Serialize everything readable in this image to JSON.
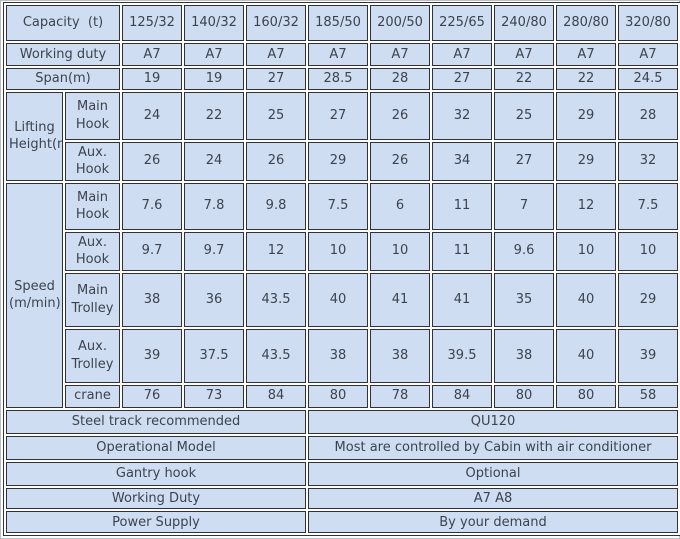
{
  "table": {
    "capacity_header": "Capacity  (t)",
    "models": [
      "125/32",
      "140/32",
      "160/32",
      "185/50",
      "200/50",
      "225/65",
      "240/80",
      "280/80",
      "320/80"
    ],
    "working_duty": {
      "label": "Working duty",
      "values": [
        "A7",
        "A7",
        "A7",
        "A7",
        "A7",
        "A7",
        "A7",
        "A7",
        "A7"
      ]
    },
    "span": {
      "label": "Span(m)",
      "values": [
        19,
        19,
        27,
        28.5,
        28,
        27,
        22,
        22,
        24.5
      ]
    },
    "lifting": {
      "label": "Lifting\nHeight(m)",
      "rows": [
        {
          "label": "Main Hook",
          "values": [
            24,
            22,
            25,
            27,
            26,
            32,
            25,
            29,
            28
          ]
        },
        {
          "label": "Aux. Hook",
          "values": [
            26,
            24,
            26,
            29,
            26,
            34,
            27,
            29,
            32
          ]
        }
      ]
    },
    "speed": {
      "label": "Speed\n(m/min)",
      "rows": [
        {
          "label": "Main Hook",
          "values": [
            7.6,
            7.8,
            9.8,
            7.5,
            6,
            11,
            7,
            12,
            7.5
          ]
        },
        {
          "label": "Aux. Hook",
          "values": [
            9.7,
            9.7,
            12,
            10,
            10,
            11,
            9.6,
            10,
            10
          ]
        },
        {
          "label": "Main Trolley",
          "values": [
            38,
            36,
            43.5,
            40,
            41,
            41,
            35,
            40,
            29
          ]
        },
        {
          "label": "Aux. Trolley",
          "values": [
            39,
            37.5,
            43.5,
            38,
            38,
            39.5,
            38,
            40,
            39
          ]
        },
        {
          "label": "crane",
          "values": [
            76,
            73,
            84,
            80,
            78,
            84,
            80,
            80,
            58
          ]
        }
      ]
    },
    "footer_rows": [
      {
        "label": "Steel track recommended",
        "value": "QU120"
      },
      {
        "label": "Operational Model",
        "value": "Most are controlled by Cabin with air conditioner"
      },
      {
        "label": "Gantry hook",
        "value": "Optional"
      },
      {
        "label": "Working Duty",
        "value": "A7 A8"
      },
      {
        "label": "Power Supply",
        "value": "By your demand"
      }
    ]
  },
  "colors": {
    "cell_background": "#cfddf2",
    "border": "#303236",
    "text": "#3d434e",
    "table_gap": "#fdfdfd"
  }
}
